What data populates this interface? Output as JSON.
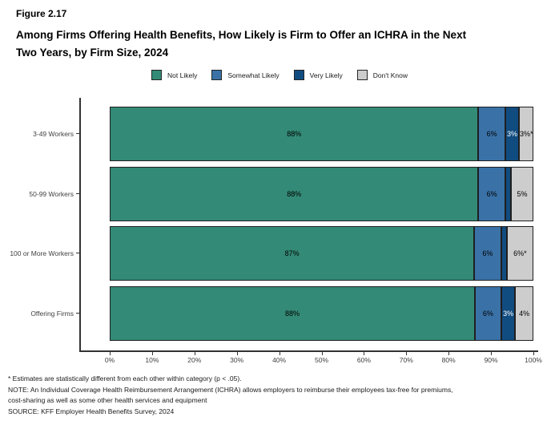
{
  "header": {
    "figure_label": "Figure 2.17",
    "title_lines": [
      "Among Firms Offering Health Benefits, How Likely is Firm to Offer an ICHRA in the Next",
      "Two Years, by Firm Size, 2024"
    ]
  },
  "chart_data": {
    "type": "bar",
    "orientation": "horizontal",
    "stacked": true,
    "title": "Among Firms Offering Health Benefits, How Likely is Firm to Offer an ICHRA in the Next Two Years, by Firm Size, 2024",
    "categories": [
      "3-49 Workers",
      "50-99 Workers",
      "100 or More Workers",
      "Offering Firms"
    ],
    "series": [
      {
        "name": "Not Likely",
        "color": "#338A76",
        "label_color": "#000000",
        "values": [
          88,
          88,
          87,
          88
        ]
      },
      {
        "name": "Somewhat Likely",
        "color": "#3A72A7",
        "label_color": "#000000",
        "values": [
          6,
          6,
          6,
          6
        ]
      },
      {
        "name": "Very Likely",
        "color": "#114C80",
        "label_color": "#FFFFFF",
        "values": [
          3,
          1,
          1,
          3
        ]
      },
      {
        "name": "Don't Know",
        "color": "#CDCDCD",
        "label_color": "#000000",
        "values": [
          3,
          5,
          6,
          4
        ]
      }
    ],
    "segment_labels": [
      [
        "88%",
        "6%",
        "3%",
        "3%*"
      ],
      [
        "88%",
        "6%",
        "",
        "5%"
      ],
      [
        "87%",
        "6%",
        "",
        "6%*"
      ],
      [
        "88%",
        "6%",
        "3%",
        "4%"
      ]
    ],
    "x_ticks": [
      "0%",
      "10%",
      "20%",
      "30%",
      "40%",
      "50%",
      "60%",
      "70%",
      "80%",
      "90%",
      "100%"
    ],
    "xlim": [
      0,
      100
    ],
    "legend_position": "top-center",
    "grid": false
  },
  "footnotes": [
    "* Estimates are statistically different from each other within category (p < .05).",
    "NOTE: An Individual Coverage Health Reimbursement Arrangement (ICHRA) allows employers to reimburse their employees tax-free for premiums,",
    "cost-sharing as well as some other health services and equipment",
    "SOURCE: KFF Employer Health Benefits Survey, 2024"
  ]
}
